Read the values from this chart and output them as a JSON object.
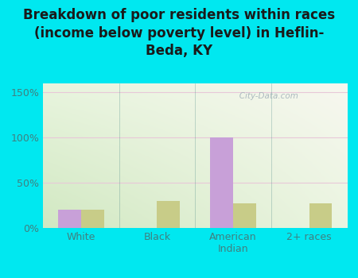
{
  "title": "Breakdown of poor residents within races\n(income below poverty level) in Heflin-\nBeda, KY",
  "categories": [
    "White",
    "Black",
    "American\nIndian",
    "2+ races"
  ],
  "heflin_beda": [
    20,
    0,
    100,
    0
  ],
  "kentucky": [
    20,
    30,
    27,
    27
  ],
  "heflin_color": "#c8a0d8",
  "kentucky_color": "#c8cc88",
  "bg_color": "#00e8f0",
  "plot_bg_topleft": "#e8f5e0",
  "plot_bg_topright": "#f8f8f0",
  "plot_bg_bottom": "#d0e8c0",
  "grid_color": "#e8c8d8",
  "ylabel_ticks": [
    "0%",
    "50%",
    "100%",
    "150%"
  ],
  "ytick_vals": [
    0,
    50,
    100,
    150
  ],
  "ylim": [
    0,
    160
  ],
  "bar_width": 0.3,
  "title_fontsize": 12,
  "tick_fontsize": 9,
  "legend_fontsize": 10,
  "tick_color": "#408080",
  "watermark": "   City-Data.com"
}
